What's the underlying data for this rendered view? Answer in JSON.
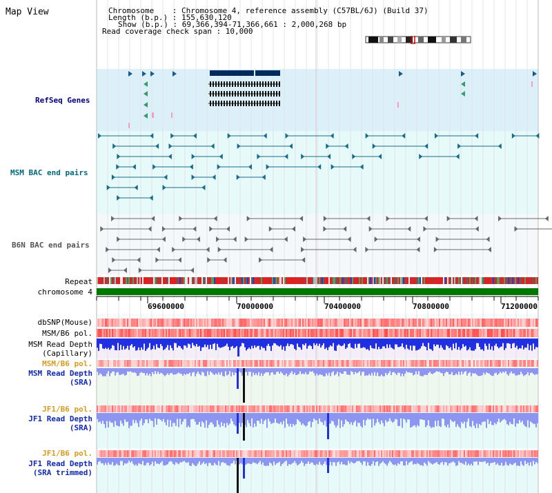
{
  "page": {
    "title": "Map View"
  },
  "info": {
    "line1": "Chromosome    : Chromosome 4, reference assembly (C57BL/6J) (Build 37)",
    "line2": "Length (b.p.) : 155,630,120",
    "line3": "Show (b.p.) : 69,366,394-71,366,661 : 2,000,268 bp",
    "line4": "Read coverage check span : 10,000"
  },
  "tracks": {
    "refseq": "RefSeq Genes",
    "msm_bac": "MSM BAC end pairs",
    "b6n_bac": "B6N BAC end pairs",
    "repeat": "Repeat",
    "chromosome": "chromosome 4",
    "dbsnp": "dbSNP(Mouse)",
    "msm_b6_pol_1": "MSM/B6 pol.",
    "msm_depth_cap_1": "MSM Read Depth",
    "msm_depth_cap_2": "(Capillary)",
    "msm_b6_pol_2": "MSM/B6 pol.",
    "msm_depth_sra_1": "MSM Read Depth",
    "msm_depth_sra_2": "(SRA)",
    "jf1_b6_pol_1": "JF1/B6 pol.",
    "jf1_depth_sra_1": "JF1 Read Depth",
    "jf1_depth_sra_2": "(SRA)",
    "jf1_b6_pol_2": "JF1/B6 pol.",
    "jf1_depth_trim_1": "JF1 Read Depth",
    "jf1_depth_trim_2": "(SRA trimmed)"
  },
  "axis": {
    "ticks": [
      "69600000",
      "70000000",
      "70400000",
      "70800000",
      "71200000"
    ]
  },
  "colors": {
    "refseq_bg": "#dcf0fa",
    "bac_bg": "#e6fafa",
    "b6n_bg": "#f4f8fa",
    "chrom_bar": "#007800",
    "depth_blue": "#2030e0",
    "depth_light": "#8c96f0",
    "pol_red": "#f06060",
    "label_navy": "#000080",
    "label_orange": "#d99a20"
  }
}
